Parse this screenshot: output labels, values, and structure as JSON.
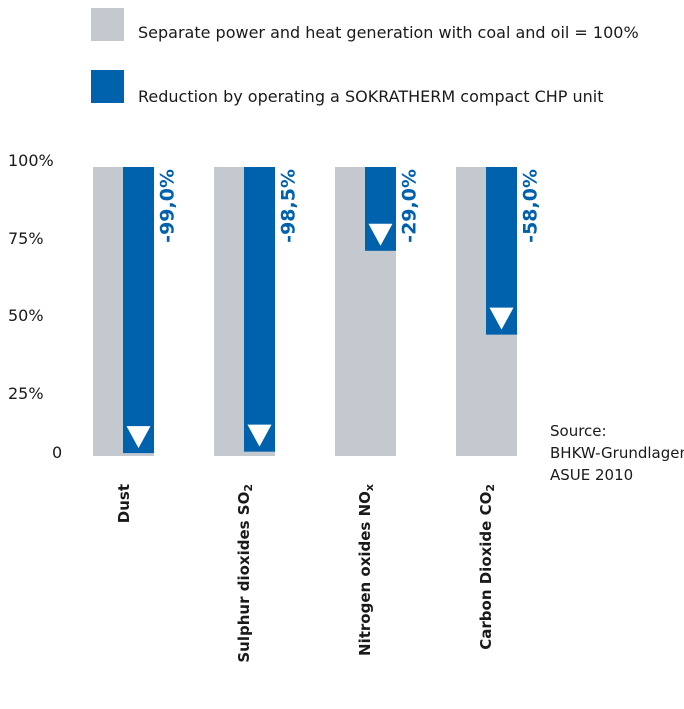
{
  "legend": [
    {
      "label": "Separate power and heat generation with coal and oil = 100%",
      "color": "#c3c9cf"
    },
    {
      "label": "Reduction by operating a SOKRATHERM compact CHP unit",
      "color": "#0061ad"
    }
  ],
  "chart_data": {
    "type": "bar",
    "y_ticks": [
      "100%",
      "75%",
      "50%",
      "25%",
      "0"
    ],
    "ylim": [
      0,
      100
    ],
    "categories": [
      {
        "main": "Dust",
        "sub": ""
      },
      {
        "main": "Sulphur dioxides SO",
        "sub": "2"
      },
      {
        "main": "Nitrogen oxides NO",
        "sub": "x"
      },
      {
        "main": "Carbon Dioxide CO",
        "sub": "2"
      }
    ],
    "series": [
      {
        "name": "Separate power and heat generation with coal and oil = 100%",
        "values": [
          100,
          100,
          100,
          100
        ]
      },
      {
        "name": "Reduction by operating a SOKRATHERM compact CHP unit",
        "values": [
          99.0,
          98.5,
          29.0,
          58.0
        ]
      }
    ],
    "reduction_labels": [
      "-99,0%",
      "-98,5%",
      "-29,0%",
      "-58,0%"
    ],
    "colors": {
      "baseline": "#c3c9cf",
      "reduction": "#0061ad",
      "arrow": "#ffffff"
    }
  },
  "source": {
    "label": "Source:",
    "line1": "BHKW-Grundlagen",
    "line2": "ASUE 2010"
  }
}
